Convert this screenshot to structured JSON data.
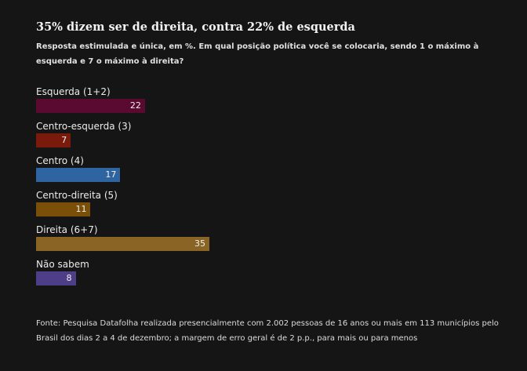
{
  "chart_data": {
    "type": "bar",
    "orientation": "horizontal",
    "title": "35% dizem ser de direita, contra 22% de esquerda",
    "subtitle": "Resposta estimulada e única, em %. Em qual posição política você se colocaria, sendo 1 o máximo à esquerda e 7 o máximo à direita?",
    "categories": [
      "Esquerda (1+2)",
      "Centro-esquerda (3)",
      "Centro (4)",
      "Centro-direita (5)",
      "Direita (6+7)",
      "Não sabem"
    ],
    "values": [
      22,
      7,
      17,
      11,
      35,
      8
    ],
    "colors": [
      "#5a0a30",
      "#7a1a0a",
      "#2e64a0",
      "#7a5008",
      "#8a6424",
      "#4e3e88"
    ],
    "data_labels": true,
    "grid": false,
    "source": "Fonte: Pesquisa Datafolha realizada presencialmente com 2.002 pessoas de 16 anos ou mais em 113 municípios pelo Brasil dos dias 2 a 4 de dezembro; a margem de erro geral é de 2 p.p., para mais ou para menos"
  }
}
